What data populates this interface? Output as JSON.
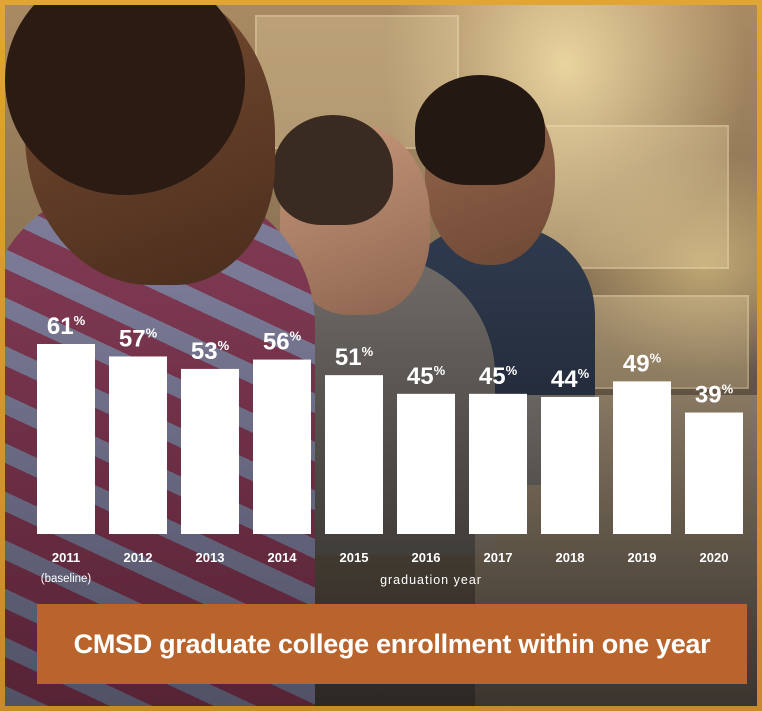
{
  "chart_data": {
    "type": "bar",
    "title": "CMSD graduate college enrollment within one year",
    "xlabel": "graduation year",
    "ylabel": "",
    "categories": [
      "2011",
      "2012",
      "2013",
      "2014",
      "2015",
      "2016",
      "2017",
      "2018",
      "2019",
      "2020"
    ],
    "category_notes": [
      "(baseline)",
      "",
      "",
      "",
      "",
      "",
      "",
      "",
      "",
      ""
    ],
    "values": [
      61,
      57,
      53,
      56,
      51,
      45,
      45,
      44,
      49,
      39
    ],
    "value_suffix": "%",
    "ylim": [
      0,
      61
    ],
    "grid": false,
    "legend": "none",
    "colors": {
      "bar": "#ffffff",
      "title_background": "#b9642c",
      "frame": "#d69a30"
    }
  }
}
